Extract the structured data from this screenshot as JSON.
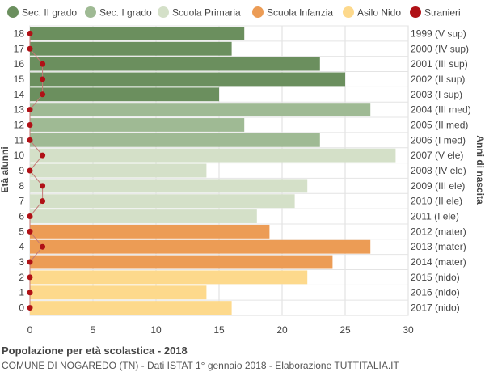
{
  "chart_data": {
    "type": "bar",
    "orientation": "horizontal",
    "title": "Popolazione per età scolastica - 2018",
    "subtitle": "COMUNE DI NOGAREDO (TN) - Dati ISTAT 1° gennaio 2018 - Elaborazione TUTTITALIA.IT",
    "ylabel": "Età alunni",
    "ylabel_right": "Anni di nascita",
    "xlim": [
      0,
      30
    ],
    "x_ticks": [
      0,
      5,
      10,
      15,
      20,
      25,
      30
    ],
    "grid": true,
    "legend_position": "top",
    "legend": [
      {
        "name": "Sec. II grado",
        "color": "#6b8f5e"
      },
      {
        "name": "Sec. I grado",
        "color": "#9fba94"
      },
      {
        "name": "Scuola Primaria",
        "color": "#d4e0c8"
      },
      {
        "name": "Scuola Infanzia",
        "color": "#ec9c55"
      },
      {
        "name": "Asilo Nido",
        "color": "#fdd98c"
      },
      {
        "name": "Stranieri",
        "color": "#b01116"
      }
    ],
    "rows": [
      {
        "age": "18",
        "birth": "1999 (V sup)",
        "value": 17,
        "stranieri": 0,
        "group": 0
      },
      {
        "age": "17",
        "birth": "2000 (IV sup)",
        "value": 16,
        "stranieri": 0,
        "group": 0
      },
      {
        "age": "16",
        "birth": "2001 (III sup)",
        "value": 23,
        "stranieri": 1,
        "group": 0
      },
      {
        "age": "15",
        "birth": "2002 (II sup)",
        "value": 25,
        "stranieri": 1,
        "group": 0
      },
      {
        "age": "14",
        "birth": "2003 (I sup)",
        "value": 15,
        "stranieri": 1,
        "group": 0
      },
      {
        "age": "13",
        "birth": "2004 (III med)",
        "value": 27,
        "stranieri": 0,
        "group": 1
      },
      {
        "age": "12",
        "birth": "2005 (II med)",
        "value": 17,
        "stranieri": 0,
        "group": 1
      },
      {
        "age": "11",
        "birth": "2006 (I med)",
        "value": 23,
        "stranieri": 0,
        "group": 1
      },
      {
        "age": "10",
        "birth": "2007 (V ele)",
        "value": 29,
        "stranieri": 1,
        "group": 2
      },
      {
        "age": "9",
        "birth": "2008 (IV ele)",
        "value": 14,
        "stranieri": 0,
        "group": 2
      },
      {
        "age": "8",
        "birth": "2009 (III ele)",
        "value": 22,
        "stranieri": 1,
        "group": 2
      },
      {
        "age": "7",
        "birth": "2010 (II ele)",
        "value": 21,
        "stranieri": 1,
        "group": 2
      },
      {
        "age": "6",
        "birth": "2011 (I ele)",
        "value": 18,
        "stranieri": 0,
        "group": 2
      },
      {
        "age": "5",
        "birth": "2012 (mater)",
        "value": 19,
        "stranieri": 0,
        "group": 3
      },
      {
        "age": "4",
        "birth": "2013 (mater)",
        "value": 27,
        "stranieri": 1,
        "group": 3
      },
      {
        "age": "3",
        "birth": "2014 (mater)",
        "value": 24,
        "stranieri": 0,
        "group": 3
      },
      {
        "age": "2",
        "birth": "2015 (nido)",
        "value": 22,
        "stranieri": 0,
        "group": 4
      },
      {
        "age": "1",
        "birth": "2016 (nido)",
        "value": 14,
        "stranieri": 0,
        "group": 4
      },
      {
        "age": "0",
        "birth": "2017 (nido)",
        "value": 16,
        "stranieri": 0,
        "group": 4
      }
    ]
  }
}
